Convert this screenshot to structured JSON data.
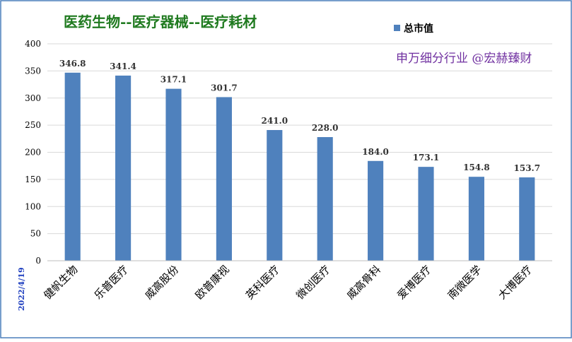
{
  "title": "医药生物--医疗器械--医疗耗材",
  "watermark": "申万细分行业 @宏赫臻财",
  "date": "2022/4/19",
  "colors": {
    "bar": "#4f81bd",
    "title": "#1f7a1f",
    "watermark": "#7030a0",
    "date": "#1f3fbf",
    "border": "#4a7ebb",
    "grid": "#d9d9d9"
  },
  "chart_data": {
    "type": "bar",
    "title": "医药生物--医疗器械--医疗耗材",
    "legend": "总市值",
    "legend_position": "top-right",
    "grid": true,
    "ylim": [
      0,
      400
    ],
    "yticks": [
      0,
      50,
      100,
      150,
      200,
      250,
      300,
      350,
      400
    ],
    "categories": [
      "健帆生物",
      "乐普医疗",
      "威高股份",
      "欧普康视",
      "英科医疗",
      "微创医疗",
      "威高骨科",
      "爱博医疗",
      "南微医学",
      "大博医疗"
    ],
    "series": [
      {
        "name": "总市值",
        "values": [
          346.8,
          341.4,
          317.1,
          301.7,
          241.0,
          228.0,
          184.0,
          173.1,
          154.8,
          153.7
        ]
      }
    ],
    "value_labels": [
      "346.8",
      "341.4",
      "317.1",
      "301.7",
      "241.0",
      "228.0",
      "184.0",
      "173.1",
      "154.8",
      "153.7"
    ]
  }
}
